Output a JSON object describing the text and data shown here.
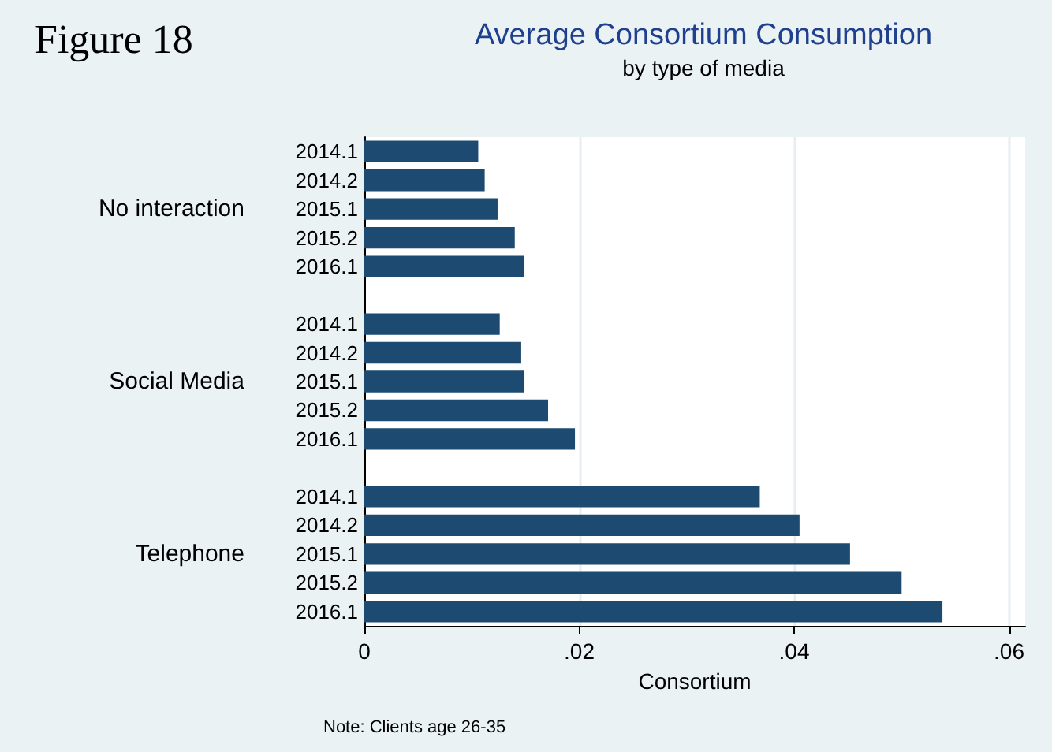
{
  "chart_data": {
    "type": "bar",
    "orientation": "horizontal",
    "title": "Average Consortium Consumption",
    "subtitle": "by type of media",
    "xlabel": "Consortium",
    "categories": [
      "2014.1",
      "2014.2",
      "2015.1",
      "2015.2",
      "2016.1",
      null,
      "2014.1",
      "2014.2",
      "2015.1",
      "2015.2",
      "2016.1",
      null,
      "2014.1",
      "2014.2",
      "2015.1",
      "2015.2",
      "2016.1"
    ],
    "values": [
      0.0106,
      0.0112,
      0.0124,
      0.014,
      0.0149,
      null,
      0.0126,
      0.0146,
      0.0149,
      0.0171,
      0.0196,
      null,
      0.0368,
      0.0405,
      0.0452,
      0.05,
      0.0538
    ],
    "color": "#1c4a70",
    "xlim": [
      0,
      0.0615
    ],
    "xticks": [
      0,
      {
        "value": 0.02,
        "label": ".02"
      },
      {
        "value": 0.04,
        "label": ".04"
      },
      {
        "value": 0.06,
        "label": ".06"
      }
    ],
    "grid": "x",
    "annotations": [
      "Figure 18",
      "No interaction",
      "Social Media",
      "Telephone",
      "Note: Clients age 26-35"
    ]
  }
}
